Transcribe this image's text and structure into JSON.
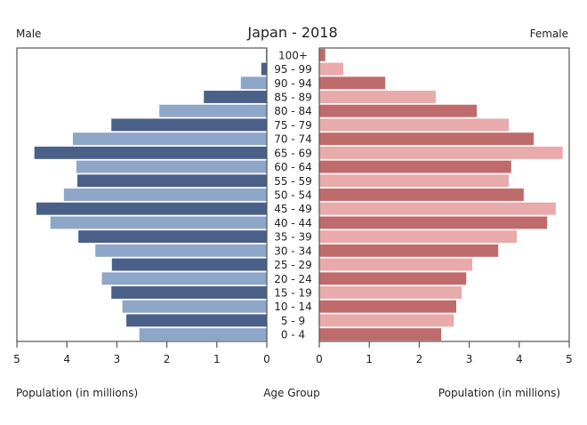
{
  "chart_data": {
    "type": "bar",
    "subtype": "population-pyramid",
    "title": "Japan - 2018",
    "left_label": "Male",
    "right_label": "Female",
    "xlabel_left": "Population (in millions)",
    "xlabel_center": "Age Group",
    "xlabel_right": "Population (in millions)",
    "xlim": [
      0,
      5
    ],
    "xticks": [
      "0",
      "1",
      "2",
      "3",
      "4",
      "5"
    ],
    "grid": false,
    "categories": [
      "100+",
      "95 - 99",
      "90 - 94",
      "85 - 89",
      "80 - 84",
      "75 - 79",
      "70 - 74",
      "65 - 69",
      "60 - 64",
      "55 - 59",
      "50 - 54",
      "45 - 49",
      "40 - 44",
      "35 - 39",
      "30 - 34",
      "25 - 29",
      "20 - 24",
      "15 - 19",
      "10 - 14",
      "5 - 9",
      "0 - 4"
    ],
    "series": [
      {
        "name": "Male",
        "side": "left",
        "colors": [
          "#4a6088",
          "#8ea6c8"
        ],
        "values": [
          0.02,
          0.11,
          0.52,
          1.26,
          2.15,
          3.11,
          3.88,
          4.65,
          3.81,
          3.79,
          4.06,
          4.61,
          4.33,
          3.77,
          3.43,
          3.1,
          3.3,
          3.11,
          2.89,
          2.81,
          2.55
        ]
      },
      {
        "name": "Female",
        "side": "right",
        "colors": [
          "#bf6b6b",
          "#e8aaaa"
        ],
        "values": [
          0.12,
          0.48,
          1.32,
          2.33,
          3.15,
          3.79,
          4.29,
          4.87,
          3.84,
          3.79,
          4.09,
          4.73,
          4.56,
          3.95,
          3.58,
          3.06,
          2.94,
          2.85,
          2.74,
          2.69,
          2.44
        ]
      }
    ]
  }
}
